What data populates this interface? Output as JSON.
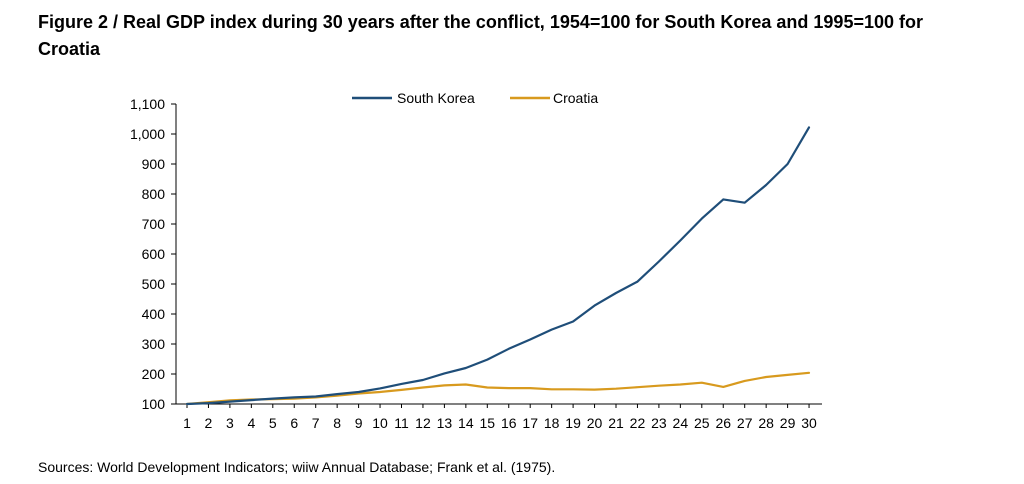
{
  "figure": {
    "title": "Figure 2 / Real GDP index during 30 years after the conflict, 1954=100 for South Korea and 1995=100 for Croatia",
    "source": "Sources: World Development Indicators; wiiw Annual Database; Frank et al. (1975)."
  },
  "chart_data": {
    "type": "line",
    "title": "Figure 2 / Real GDP index during 30 years after the conflict, 1954=100 for South Korea and 1995=100 for Croatia",
    "xlabel": "",
    "ylabel": "",
    "x": [
      1,
      2,
      3,
      4,
      5,
      6,
      7,
      8,
      9,
      10,
      11,
      12,
      13,
      14,
      15,
      16,
      17,
      18,
      19,
      20,
      21,
      22,
      23,
      24,
      25,
      26,
      27,
      28,
      29,
      30
    ],
    "x_tick_labels": [
      "1",
      "2",
      "3",
      "4",
      "5",
      "6",
      "7",
      "8",
      "9",
      "10",
      "11",
      "12",
      "13",
      "14",
      "15",
      "16",
      "17",
      "18",
      "19",
      "20",
      "21",
      "22",
      "23",
      "24",
      "25",
      "26",
      "27",
      "28",
      "29",
      "30"
    ],
    "ylim": [
      100,
      1100
    ],
    "y_ticks": [
      100,
      200,
      300,
      400,
      500,
      600,
      700,
      800,
      900,
      1000,
      1100
    ],
    "y_tick_labels": [
      "100",
      "200",
      "300",
      "400",
      "500",
      "600",
      "700",
      "800",
      "900",
      "1,000",
      "1,100"
    ],
    "grid": false,
    "legend_position": "top-center",
    "series": [
      {
        "name": "South Korea",
        "color": "#1f4e79",
        "values": [
          100,
          103,
          108,
          113,
          118,
          122,
          125,
          133,
          140,
          152,
          167,
          180,
          202,
          220,
          248,
          284,
          315,
          348,
          375,
          428,
          470,
          508,
          575,
          645,
          718,
          782,
          771,
          830,
          900,
          1022
        ]
      },
      {
        "name": "Croatia",
        "color": "#d89a1e",
        "values": [
          100,
          106,
          112,
          115,
          116,
          118,
          122,
          128,
          135,
          140,
          147,
          155,
          162,
          165,
          155,
          153,
          153,
          149,
          149,
          148,
          151,
          156,
          161,
          165,
          171,
          157,
          177,
          190,
          197,
          204
        ]
      }
    ]
  }
}
